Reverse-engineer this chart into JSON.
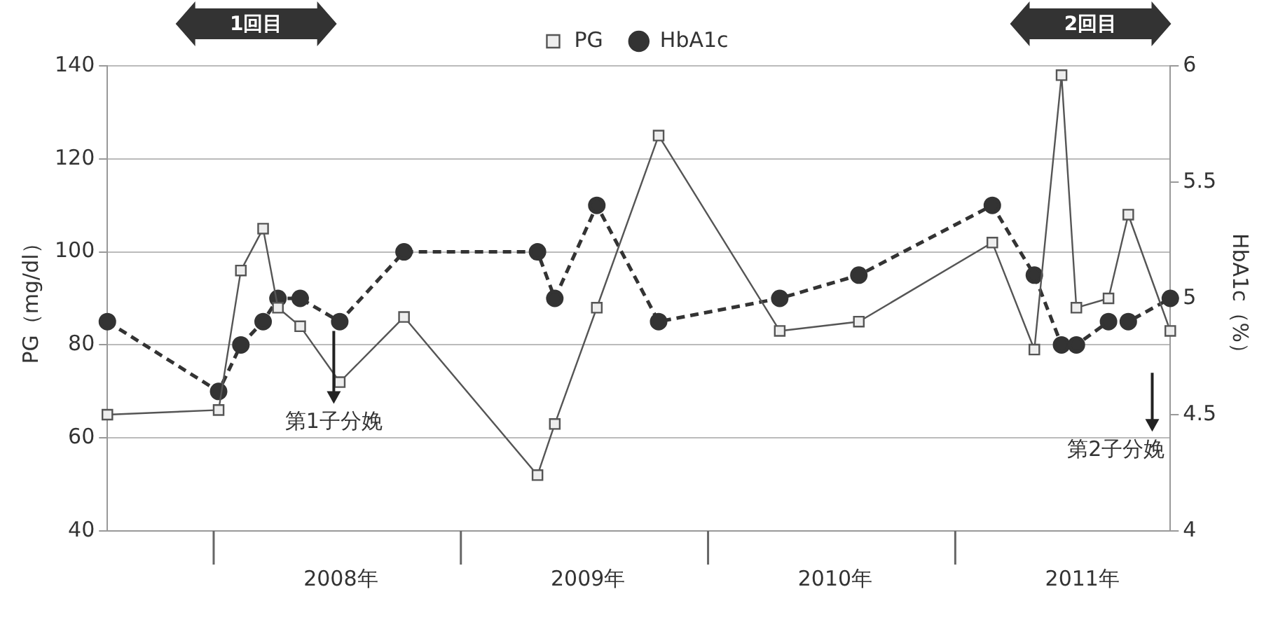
{
  "chart_data": {
    "type": "line",
    "xlabel": null,
    "ylabel": "PG（mg/dl）",
    "y2label": "HbA1c（%）",
    "x": [
      2007.57,
      2008.02,
      2008.11,
      2008.2,
      2008.26,
      2008.35,
      2008.51,
      2008.77,
      2009.31,
      2009.38,
      2009.55,
      2009.8,
      2010.29,
      2010.61,
      2011.15,
      2011.32,
      2011.43,
      2011.49,
      2011.62,
      2011.7,
      2011.87
    ],
    "series": [
      {
        "name": "PG",
        "color": "#555555",
        "marker": "square",
        "line_style": "solid",
        "values": [
          65,
          66,
          96,
          105,
          88,
          84,
          72,
          86,
          52,
          63,
          88,
          125,
          83,
          85,
          102,
          79,
          138,
          88,
          90,
          108,
          83
        ]
      },
      {
        "name": "HbA1c",
        "color": "#333333",
        "marker": "circle",
        "line_style": "dashed",
        "axis": "y2",
        "values": [
          4.9,
          4.6,
          4.8,
          4.9,
          5.0,
          5.0,
          4.9,
          5.2,
          5.2,
          5.0,
          5.4,
          4.9,
          5.0,
          5.1,
          5.4,
          5.1,
          4.8,
          4.8,
          4.9,
          4.9,
          5.0
        ]
      }
    ],
    "xlim": [
      2007.57,
      2011.87
    ],
    "xticks": [
      {
        "value": 2008.5,
        "label": "2008年"
      },
      {
        "value": 2009.5,
        "label": "2009年"
      },
      {
        "value": 2010.5,
        "label": "2010年"
      },
      {
        "value": 2011.5,
        "label": "2011年"
      }
    ],
    "ylim": [
      40,
      140
    ],
    "yticks": [
      40,
      60,
      80,
      100,
      120,
      140
    ],
    "y2lim": [
      4,
      6
    ],
    "y2ticks": [
      4,
      4.5,
      5,
      5.5,
      6
    ],
    "annotations": [
      "1回目",
      "2回目",
      "第1子分娩",
      "第2子分娩"
    ],
    "grid": "y",
    "legend": "top"
  }
}
